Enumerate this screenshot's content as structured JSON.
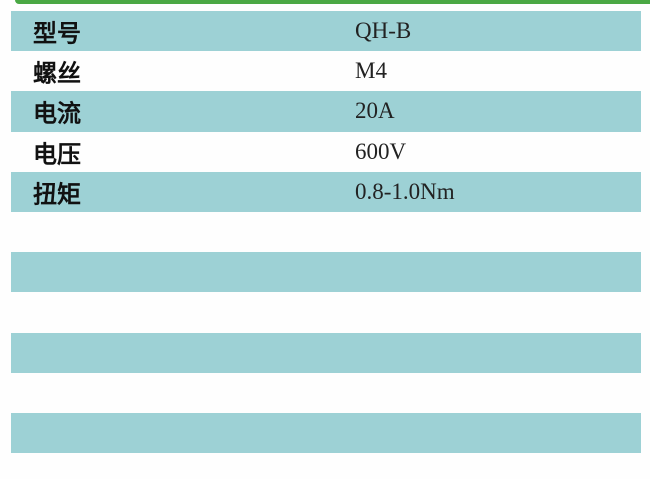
{
  "colors": {
    "accent_bar": "#4aa844",
    "row_shade": "#9dd1d5"
  },
  "specs": [
    {
      "label": "型号",
      "value": "QH-B"
    },
    {
      "label": "螺丝",
      "value": "M4"
    },
    {
      "label": "电流",
      "value": "20A"
    },
    {
      "label": "电压",
      "value": "600V"
    },
    {
      "label": "扭矩",
      "value": "0.8-1.0Nm"
    },
    {
      "label": "",
      "value": ""
    },
    {
      "label": "",
      "value": ""
    },
    {
      "label": "",
      "value": ""
    },
    {
      "label": "",
      "value": ""
    },
    {
      "label": "",
      "value": ""
    },
    {
      "label": "",
      "value": ""
    }
  ]
}
